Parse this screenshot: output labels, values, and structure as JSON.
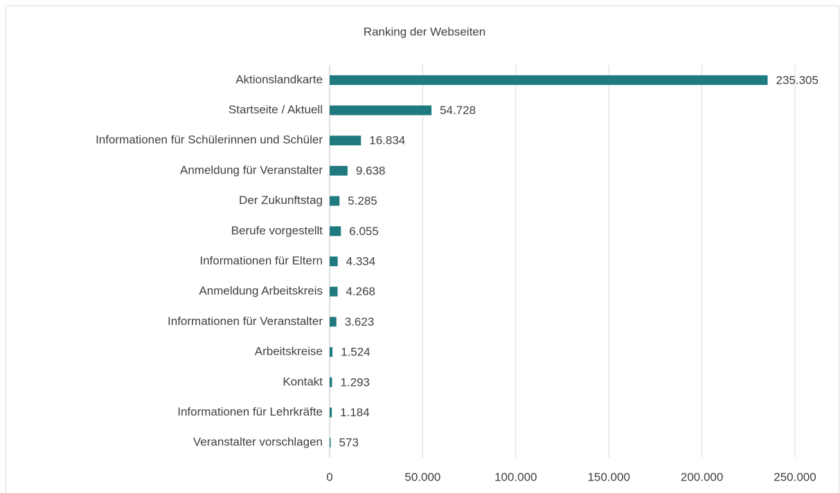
{
  "chart_data": {
    "type": "hbar",
    "title": "Ranking der Webseiten",
    "categories": [
      "Aktionslandkarte",
      "Startseite / Aktuell",
      "Informationen für Schülerinnen und Schüler",
      "Anmeldung für Veranstalter",
      "Der Zukunftstag",
      "Berufe vorgestellt",
      "Informationen für Eltern",
      "Anmeldung Arbeitskreis",
      "Informationen für Veranstalter",
      "Arbeitskreise",
      "Kontakt",
      "Informationen für Lehrkräfte",
      "Veranstalter vorschlagen"
    ],
    "values": [
      235305,
      54728,
      16834,
      9638,
      5285,
      6055,
      4334,
      4268,
      3623,
      1524,
      1293,
      1184,
      573
    ],
    "value_labels": [
      "235.305",
      "54.728",
      "16.834",
      "9.638",
      "5.285",
      "6.055",
      "4.334",
      "4.268",
      "3.623",
      "1.524",
      "1.293",
      "1.184",
      "573"
    ],
    "color": "#1f7a80",
    "xlim": [
      0,
      250000
    ],
    "xticks": [
      0,
      {
        "value": 50000,
        "label": "50.000"
      },
      {
        "value": 100000,
        "label": "100.000"
      },
      {
        "value": 150000,
        "label": "150.000"
      },
      {
        "value": 200000,
        "label": "200.000"
      },
      {
        "value": 250000,
        "label": "250.000"
      }
    ],
    "grid": true
  }
}
